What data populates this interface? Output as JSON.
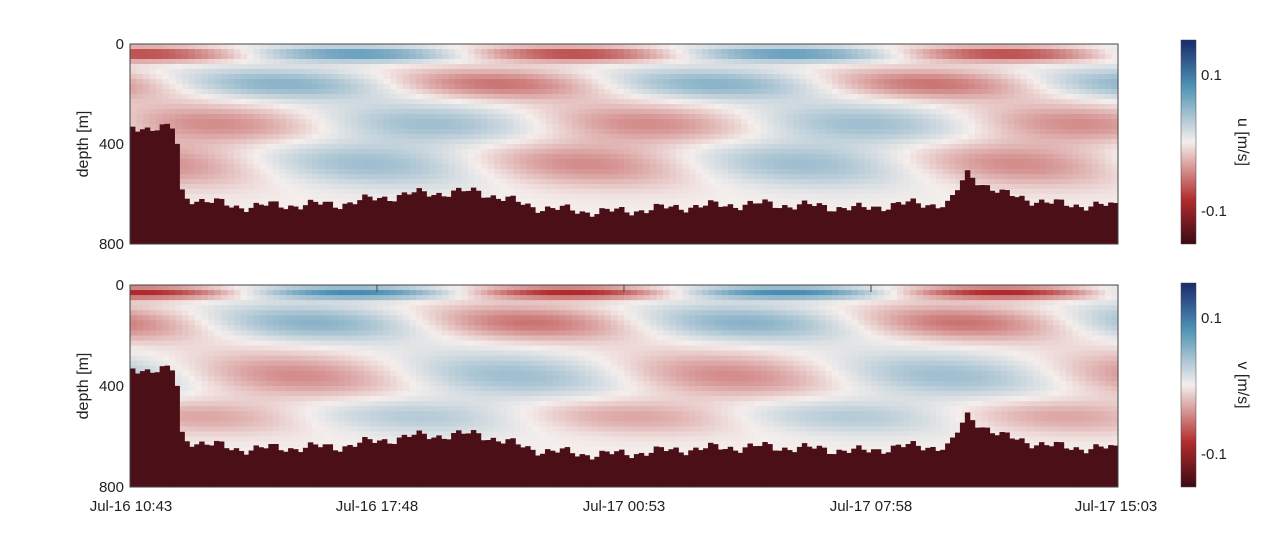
{
  "colors": {
    "neg_max": "#3c0a14",
    "neg": "#b22d2d",
    "zero": "#f4eeec",
    "pos": "#4c90b4",
    "pos_max": "#1a2a6c",
    "bathymetry": "#4a0f17",
    "axis": "#444444"
  },
  "chart_data": [
    {
      "type": "heatmap",
      "title": "",
      "xlabel": "",
      "ylabel": "depth [m]",
      "colorbar_label": "u [m/s]",
      "x_ticks": [
        "Jul-16 10:43",
        "Jul-16 17:48",
        "Jul-17 00:53",
        "Jul-17 07:58",
        "Jul-17 15:03"
      ],
      "y_ticks": [
        0,
        400,
        800
      ],
      "y_range": [
        0,
        800
      ],
      "clim": [
        -0.14,
        0.14
      ],
      "colorbar_ticks": [
        0.1,
        -0.1
      ],
      "colorbar_tick_labels": [
        "0.1",
        "-0.1"
      ],
      "x_range_hours": [
        0,
        28.33
      ],
      "velocity_structure": [
        {
          "depth_center": 40,
          "halfwidth": 30,
          "amplitude": -0.07,
          "phase_hours": 0
        },
        {
          "depth_center": 160,
          "halfwidth": 60,
          "amplitude": 0.05,
          "phase_hours": 3
        },
        {
          "depth_center": 320,
          "halfwidth": 80,
          "amplitude": 0.04,
          "phase_hours": 6
        },
        {
          "depth_center": 480,
          "halfwidth": 90,
          "amplitude": -0.04,
          "phase_hours": 9
        }
      ],
      "tidal_period_hours": 12.4,
      "bottom_depth_profile": {
        "hours": [
          0,
          1.3,
          1.5,
          3,
          6,
          8,
          10,
          11.5,
          13,
          14,
          16,
          18,
          20,
          21,
          22,
          23.5,
          24,
          25,
          26.5,
          28.33
        ],
        "depth": [
          330,
          340,
          610,
          650,
          640,
          600,
          590,
          650,
          670,
          670,
          650,
          640,
          650,
          660,
          640,
          640,
          520,
          600,
          640,
          650
        ]
      }
    },
    {
      "type": "heatmap",
      "title": "",
      "xlabel": "",
      "ylabel": "depth [m]",
      "colorbar_label": "v [m/s]",
      "x_ticks": [
        "Jul-16 10:43",
        "Jul-16 17:48",
        "Jul-17 00:53",
        "Jul-17 07:58",
        "Jul-17 15:03"
      ],
      "y_ticks": [
        0,
        400,
        800
      ],
      "y_range": [
        0,
        800
      ],
      "clim": [
        -0.14,
        0.14
      ],
      "colorbar_ticks": [
        0.1,
        -0.1
      ],
      "colorbar_tick_labels": [
        "0.1",
        "-0.1"
      ],
      "x_range_hours": [
        0,
        28.33
      ],
      "velocity_structure": [
        {
          "depth_center": 30,
          "halfwidth": 25,
          "amplitude": -0.08,
          "phase_hours": 0
        },
        {
          "depth_center": 150,
          "halfwidth": 70,
          "amplitude": 0.05,
          "phase_hours": 4
        },
        {
          "depth_center": 360,
          "halfwidth": 90,
          "amplitude": 0.04,
          "phase_hours": 8
        },
        {
          "depth_center": 520,
          "halfwidth": 70,
          "amplitude": -0.03,
          "phase_hours": 10
        }
      ],
      "tidal_period_hours": 12.4,
      "bottom_depth_profile": {
        "hours": [
          0,
          1.3,
          1.5,
          3,
          6,
          8,
          10,
          11.5,
          13,
          14,
          16,
          18,
          20,
          21,
          22,
          23.5,
          24,
          25,
          26.5,
          28.33
        ],
        "depth": [
          330,
          340,
          610,
          650,
          640,
          600,
          590,
          650,
          670,
          670,
          650,
          640,
          650,
          660,
          640,
          640,
          520,
          600,
          640,
          650
        ]
      }
    }
  ]
}
